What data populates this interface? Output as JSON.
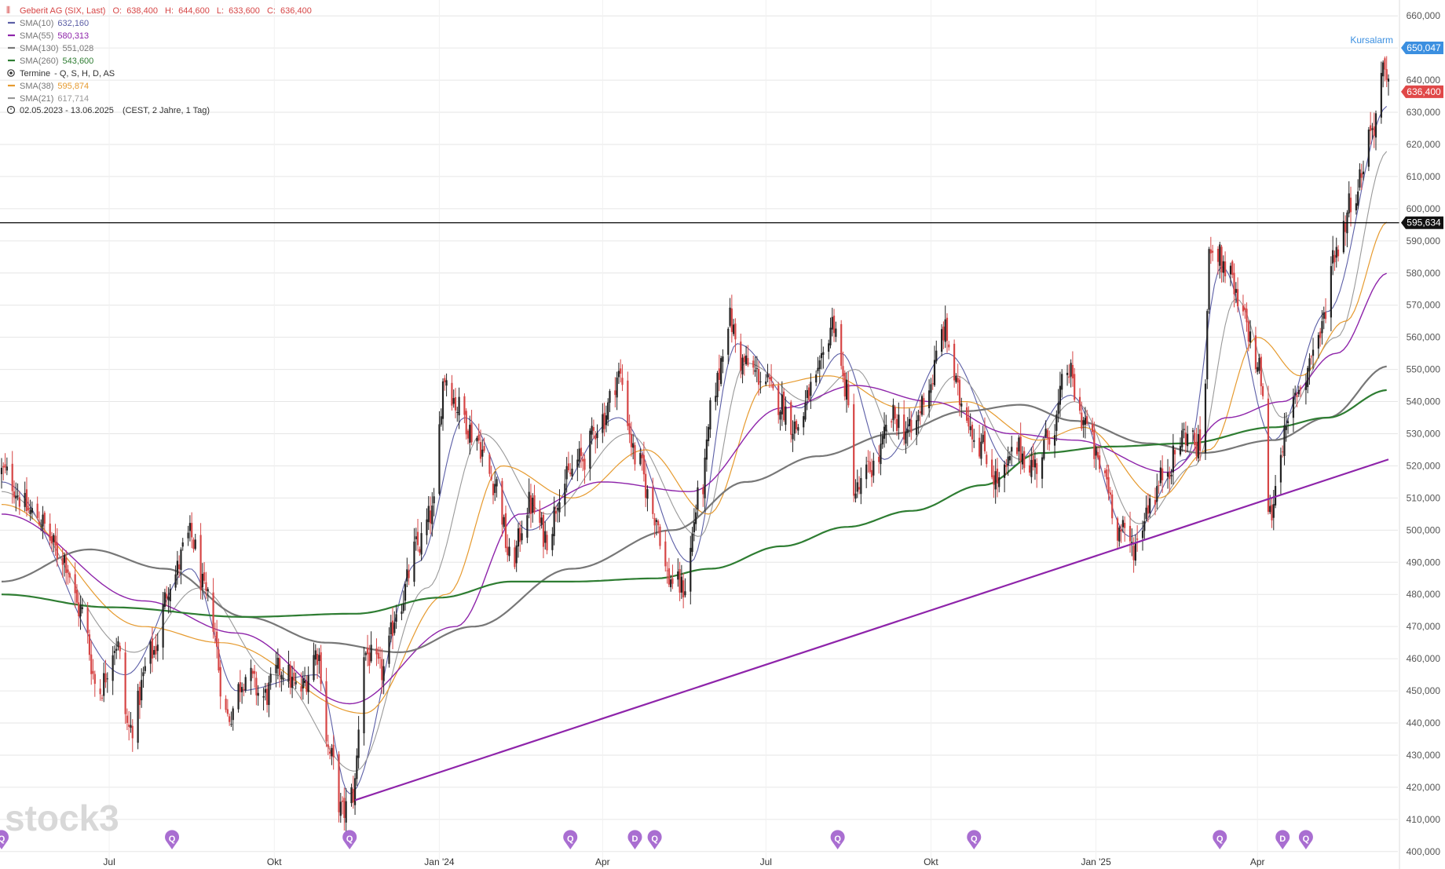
{
  "chart_data": {
    "type": "candlestick",
    "title": "Geberit AG (SIX, Last)",
    "ohlc_summary": {
      "open_label": "O:",
      "open": "638,400",
      "high_label": "H:",
      "high": "644,600",
      "low_label": "L:",
      "low": "633,600",
      "close_label": "C:",
      "close": "636,400"
    },
    "legend": [
      {
        "id": "sma10",
        "name": "SMA(10)",
        "value": "632,160",
        "color": "#5b5ea6",
        "kind": "dash"
      },
      {
        "id": "sma55",
        "name": "SMA(55)",
        "value": "580,313",
        "color": "#8e24aa",
        "kind": "dash"
      },
      {
        "id": "sma130",
        "name": "SMA(130)",
        "value": "551,028",
        "color": "#777777",
        "kind": "dash"
      },
      {
        "id": "sma260",
        "name": "SMA(260)",
        "value": "543,600",
        "color": "#2e7d32",
        "kind": "dash"
      },
      {
        "id": "termine",
        "name": "Termine",
        "value": "- Q, S, H, D, AS",
        "color": "#333333",
        "kind": "radio"
      },
      {
        "id": "sma38",
        "name": "SMA(38)",
        "value": "595,874",
        "color": "#e69a2e",
        "kind": "dash"
      },
      {
        "id": "sma21",
        "name": "SMA(21)",
        "value": "617,714",
        "color": "#999999",
        "kind": "dash"
      }
    ],
    "range": {
      "dates": "02.05.2023 - 13.06.2025",
      "detail": "(CEST, 2 Jahre, 1 Tag)"
    },
    "y_ticks": [
      400,
      410,
      420,
      430,
      440,
      450,
      460,
      470,
      480,
      490,
      500,
      510,
      520,
      530,
      540,
      550,
      560,
      570,
      580,
      590,
      600,
      610,
      620,
      630,
      640,
      650,
      660
    ],
    "y_tick_labels": [
      "400,000",
      "410,000",
      "420,000",
      "430,000",
      "440,000",
      "450,000",
      "460,000",
      "470,000",
      "480,000",
      "490,000",
      "500,000",
      "510,000",
      "520,000",
      "530,000",
      "540,000",
      "550,000",
      "560,000",
      "570,000",
      "580,000",
      "590,000",
      "600,000",
      "610,000",
      "620,000",
      "630,000",
      "640,000",
      "650,000",
      "660,000"
    ],
    "ylim": [
      398,
      662
    ],
    "xlim": [
      "2023-05-02",
      "2025-06-13"
    ],
    "x_ticks": [
      {
        "label": "Jul",
        "date": "2023-07-01"
      },
      {
        "label": "Okt",
        "date": "2023-10-01"
      },
      {
        "label": "Jan '24",
        "date": "2024-01-01"
      },
      {
        "label": "Apr",
        "date": "2024-04-01"
      },
      {
        "label": "Jul",
        "date": "2024-07-01"
      },
      {
        "label": "Okt",
        "date": "2024-10-01"
      },
      {
        "label": "Jan '25",
        "date": "2025-01-01"
      },
      {
        "label": "Apr",
        "date": "2025-04-01"
      }
    ],
    "grid": true,
    "price_anchors": [
      [
        "2023-05-02",
        518
      ],
      [
        "2023-05-20",
        505
      ],
      [
        "2023-06-05",
        492
      ],
      [
        "2023-06-15",
        475
      ],
      [
        "2023-06-25",
        450
      ],
      [
        "2023-07-05",
        465
      ],
      [
        "2023-07-12",
        438
      ],
      [
        "2023-07-25",
        462
      ],
      [
        "2023-08-05",
        485
      ],
      [
        "2023-08-15",
        498
      ],
      [
        "2023-08-25",
        478
      ],
      [
        "2023-09-05",
        442
      ],
      [
        "2023-09-15",
        455
      ],
      [
        "2023-09-25",
        448
      ],
      [
        "2023-10-05",
        457
      ],
      [
        "2023-10-15",
        450
      ],
      [
        "2023-10-25",
        462
      ],
      [
        "2023-11-01",
        430
      ],
      [
        "2023-11-08",
        412
      ],
      [
        "2023-11-14",
        418
      ],
      [
        "2023-11-20",
        462
      ],
      [
        "2023-11-30",
        456
      ],
      [
        "2023-12-10",
        478
      ],
      [
        "2023-12-20",
        495
      ],
      [
        "2023-12-28",
        505
      ],
      [
        "2024-01-04",
        548
      ],
      [
        "2024-01-12",
        538
      ],
      [
        "2024-01-20",
        530
      ],
      [
        "2024-02-01",
        515
      ],
      [
        "2024-02-10",
        490
      ],
      [
        "2024-02-20",
        508
      ],
      [
        "2024-03-01",
        498
      ],
      [
        "2024-03-10",
        515
      ],
      [
        "2024-03-20",
        522
      ],
      [
        "2024-04-01",
        535
      ],
      [
        "2024-04-10",
        548
      ],
      [
        "2024-04-20",
        522
      ],
      [
        "2024-04-30",
        505
      ],
      [
        "2024-05-08",
        485
      ],
      [
        "2024-05-16",
        482
      ],
      [
        "2024-05-25",
        510
      ],
      [
        "2024-06-03",
        545
      ],
      [
        "2024-06-10",
        566
      ],
      [
        "2024-06-18",
        552
      ],
      [
        "2024-06-28",
        548
      ],
      [
        "2024-07-08",
        540
      ],
      [
        "2024-07-18",
        532
      ],
      [
        "2024-07-28",
        545
      ],
      [
        "2024-08-08",
        565
      ],
      [
        "2024-08-14",
        545
      ],
      [
        "2024-08-20",
        512
      ],
      [
        "2024-08-30",
        520
      ],
      [
        "2024-09-10",
        535
      ],
      [
        "2024-09-20",
        530
      ],
      [
        "2024-09-30",
        545
      ],
      [
        "2024-10-08",
        562
      ],
      [
        "2024-10-18",
        540
      ],
      [
        "2024-10-28",
        527
      ],
      [
        "2024-11-08",
        515
      ],
      [
        "2024-11-18",
        525
      ],
      [
        "2024-11-28",
        520
      ],
      [
        "2024-12-08",
        532
      ],
      [
        "2024-12-16",
        550
      ],
      [
        "2024-12-24",
        535
      ],
      [
        "2025-01-05",
        518
      ],
      [
        "2025-01-14",
        500
      ],
      [
        "2025-01-22",
        495
      ],
      [
        "2025-02-01",
        510
      ],
      [
        "2025-02-10",
        520
      ],
      [
        "2025-02-20",
        530
      ],
      [
        "2025-03-01",
        525
      ],
      [
        "2025-03-06",
        590
      ],
      [
        "2025-03-14",
        582
      ],
      [
        "2025-03-24",
        566
      ],
      [
        "2025-04-02",
        550
      ],
      [
        "2025-04-08",
        505
      ],
      [
        "2025-04-15",
        528
      ],
      [
        "2025-04-25",
        545
      ],
      [
        "2025-05-05",
        560
      ],
      [
        "2025-05-15",
        588
      ],
      [
        "2025-05-25",
        605
      ],
      [
        "2025-06-04",
        625
      ],
      [
        "2025-06-10",
        642
      ],
      [
        "2025-06-13",
        636.4
      ]
    ],
    "sma_anchors": {
      "sma10": [
        [
          "2023-05-02",
          515
        ],
        [
          "2023-07-10",
          455
        ],
        [
          "2023-08-15",
          488
        ],
        [
          "2023-09-10",
          450
        ],
        [
          "2023-10-25",
          455
        ],
        [
          "2023-11-12",
          418
        ],
        [
          "2023-12-20",
          490
        ],
        [
          "2024-01-15",
          535
        ],
        [
          "2024-02-20",
          500
        ],
        [
          "2024-04-10",
          535
        ],
        [
          "2024-05-20",
          490
        ],
        [
          "2024-06-15",
          558
        ],
        [
          "2024-07-20",
          538
        ],
        [
          "2024-08-12",
          555
        ],
        [
          "2024-09-05",
          522
        ],
        [
          "2024-10-10",
          555
        ],
        [
          "2024-11-15",
          520
        ],
        [
          "2024-12-18",
          542
        ],
        [
          "2025-01-20",
          498
        ],
        [
          "2025-02-20",
          522
        ],
        [
          "2025-03-12",
          582
        ],
        [
          "2025-04-10",
          528
        ],
        [
          "2025-05-10",
          568
        ],
        [
          "2025-06-13",
          632
        ]
      ],
      "sma21": [
        [
          "2023-05-02",
          512
        ],
        [
          "2023-07-15",
          462
        ],
        [
          "2023-08-20",
          482
        ],
        [
          "2023-10-01",
          455
        ],
        [
          "2023-11-15",
          425
        ],
        [
          "2023-12-25",
          482
        ],
        [
          "2024-01-25",
          530
        ],
        [
          "2024-03-01",
          505
        ],
        [
          "2024-04-15",
          530
        ],
        [
          "2024-05-25",
          498
        ],
        [
          "2024-06-20",
          552
        ],
        [
          "2024-07-25",
          540
        ],
        [
          "2024-08-20",
          550
        ],
        [
          "2024-09-15",
          525
        ],
        [
          "2024-10-15",
          548
        ],
        [
          "2024-11-20",
          522
        ],
        [
          "2024-12-20",
          540
        ],
        [
          "2025-01-25",
          502
        ],
        [
          "2025-02-25",
          520
        ],
        [
          "2025-03-20",
          572
        ],
        [
          "2025-04-15",
          535
        ],
        [
          "2025-05-15",
          560
        ],
        [
          "2025-06-13",
          618
        ]
      ],
      "sma38": [
        [
          "2023-05-02",
          508
        ],
        [
          "2023-07-20",
          470
        ],
        [
          "2023-09-01",
          465
        ],
        [
          "2023-11-20",
          443
        ],
        [
          "2024-01-05",
          480
        ],
        [
          "2024-02-05",
          520
        ],
        [
          "2024-03-15",
          510
        ],
        [
          "2024-04-25",
          525
        ],
        [
          "2024-05-30",
          505
        ],
        [
          "2024-07-01",
          545
        ],
        [
          "2024-08-05",
          548
        ],
        [
          "2024-09-15",
          538
        ],
        [
          "2024-10-20",
          540
        ],
        [
          "2024-11-30",
          528
        ],
        [
          "2024-12-25",
          532
        ],
        [
          "2025-02-05",
          510
        ],
        [
          "2025-03-05",
          525
        ],
        [
          "2025-04-01",
          560
        ],
        [
          "2025-04-25",
          548
        ],
        [
          "2025-05-20",
          565
        ],
        [
          "2025-06-13",
          596
        ]
      ],
      "sma55": [
        [
          "2023-05-02",
          505
        ],
        [
          "2023-07-20",
          478
        ],
        [
          "2023-09-10",
          468
        ],
        [
          "2023-11-12",
          446
        ],
        [
          "2024-01-10",
          470
        ],
        [
          "2024-02-15",
          505
        ],
        [
          "2024-04-01",
          515
        ],
        [
          "2024-05-20",
          512
        ],
        [
          "2024-07-10",
          538
        ],
        [
          "2024-08-20",
          545
        ],
        [
          "2024-10-01",
          540
        ],
        [
          "2024-11-15",
          530
        ],
        [
          "2024-12-20",
          528
        ],
        [
          "2025-02-10",
          518
        ],
        [
          "2025-03-15",
          535
        ],
        [
          "2025-04-15",
          540
        ],
        [
          "2025-05-15",
          555
        ],
        [
          "2025-06-13",
          580
        ]
      ],
      "sma130": [
        [
          "2023-05-02",
          484
        ],
        [
          "2023-06-20",
          494
        ],
        [
          "2023-08-01",
          488
        ],
        [
          "2023-09-15",
          473
        ],
        [
          "2023-10-30",
          465
        ],
        [
          "2023-12-10",
          462
        ],
        [
          "2024-01-20",
          470
        ],
        [
          "2024-03-15",
          488
        ],
        [
          "2024-05-10",
          500
        ],
        [
          "2024-06-20",
          515
        ],
        [
          "2024-07-30",
          523
        ],
        [
          "2024-09-10",
          530
        ],
        [
          "2024-10-20",
          537
        ],
        [
          "2024-11-20",
          539
        ],
        [
          "2024-12-20",
          534
        ],
        [
          "2025-01-30",
          527
        ],
        [
          "2025-03-01",
          524
        ],
        [
          "2025-04-10",
          528
        ],
        [
          "2025-05-10",
          535
        ],
        [
          "2025-06-13",
          551
        ]
      ],
      "sma260": [
        [
          "2023-05-02",
          480
        ],
        [
          "2023-07-01",
          476
        ],
        [
          "2023-09-15",
          473
        ],
        [
          "2023-11-15",
          474
        ],
        [
          "2024-01-01",
          479
        ],
        [
          "2024-02-10",
          484
        ],
        [
          "2024-03-15",
          484
        ],
        [
          "2024-05-01",
          485
        ],
        [
          "2024-05-31",
          488
        ],
        [
          "2024-07-10",
          495
        ],
        [
          "2024-08-15",
          501
        ],
        [
          "2024-09-20",
          506
        ],
        [
          "2024-10-30",
          514
        ],
        [
          "2024-12-01",
          524
        ],
        [
          "2025-01-10",
          526
        ],
        [
          "2025-02-20",
          527
        ],
        [
          "2025-04-10",
          532
        ],
        [
          "2025-05-10",
          535
        ],
        [
          "2025-06-13",
          543.6
        ]
      ]
    },
    "horizontal_line": {
      "value": 595.634,
      "label": "595,634",
      "color": "#000000"
    },
    "trendline": {
      "x": [
        "2023-11-15",
        "2025-06-13"
      ],
      "y": [
        416,
        522
      ],
      "color": "#8e24aa"
    },
    "price_badges": [
      {
        "name": "kursalarm",
        "value": 650.047,
        "label": "650,047",
        "color": "#3b8fe0",
        "caption": "Kursalarm"
      },
      {
        "name": "last-price",
        "value": 636.4,
        "label": "636,400",
        "color": "#e04848"
      },
      {
        "name": "resistance",
        "value": 595.634,
        "label": "595,634",
        "color": "#111111"
      }
    ],
    "event_markers": [
      {
        "label": "Q",
        "date": "2023-05-02"
      },
      {
        "label": "Q",
        "date": "2023-08-05"
      },
      {
        "label": "Q",
        "date": "2023-11-12"
      },
      {
        "label": "Q",
        "date": "2024-03-14"
      },
      {
        "label": "D",
        "date": "2024-04-19"
      },
      {
        "label": "Q",
        "date": "2024-04-30"
      },
      {
        "label": "Q",
        "date": "2024-08-10"
      },
      {
        "label": "Q",
        "date": "2024-10-25"
      },
      {
        "label": "Q",
        "date": "2025-03-11"
      },
      {
        "label": "D",
        "date": "2025-04-15"
      },
      {
        "label": "Q",
        "date": "2025-04-28"
      }
    ],
    "colors": {
      "up": "#222222",
      "down": "#d64545",
      "grid": "#e6e6e6",
      "axis": "#555555",
      "watermark": "#d8d8d8",
      "marker": "#a96ed1"
    }
  },
  "watermark": "stock3"
}
